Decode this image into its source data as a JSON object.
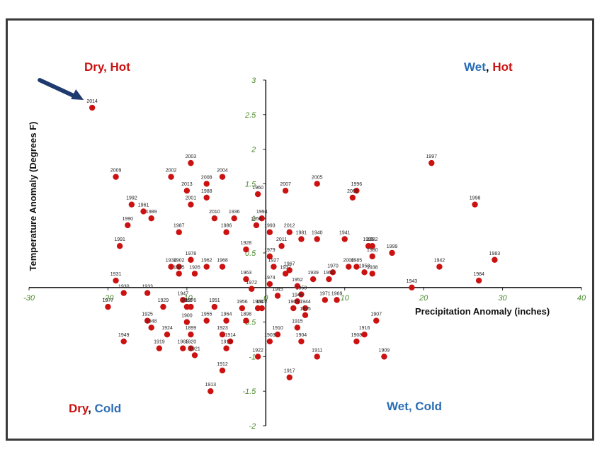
{
  "colors": {
    "red": "#cc1111",
    "blue": "#2a6db5",
    "tick": "#4a8a2a",
    "arrow": "#1f3a6e",
    "point": "#cc1111"
  },
  "quadrants": {
    "top_left": [
      {
        "text": "Dry, Hot",
        "color": "#cc1111"
      }
    ],
    "top_right": [
      {
        "text": "Wet",
        "color": "#2a6db5"
      },
      {
        "text": ", ",
        "color": "#111111"
      },
      {
        "text": "Hot",
        "color": "#cc1111"
      }
    ],
    "bottom_left": [
      {
        "text": "Dry",
        "color": "#cc1111"
      },
      {
        "text": ", ",
        "color": "#111111"
      },
      {
        "text": "Cold",
        "color": "#2a6db5"
      }
    ],
    "bottom_right": [
      {
        "text": "Wet, Cold",
        "color": "#2a6db5"
      }
    ]
  },
  "chart_data": {
    "type": "scatter",
    "xlabel": "Precipitation Anomaly (inches)",
    "ylabel": "Temperature Anomaly (Degrees F)",
    "xlim": [
      -30,
      40
    ],
    "ylim": [
      -2,
      3
    ],
    "xticks": [
      -30,
      -20,
      -10,
      0,
      10,
      20,
      30,
      40
    ],
    "yticks": [
      -2,
      -1.5,
      -1,
      -0.5,
      0,
      0.5,
      1,
      1.5,
      2,
      2.5,
      3
    ],
    "grid": false,
    "annotation": {
      "type": "arrow",
      "target": "2014"
    },
    "points": [
      {
        "label": "2014",
        "x": -22,
        "y": 2.6
      },
      {
        "label": "2009",
        "x": -19,
        "y": 1.6
      },
      {
        "label": "2002",
        "x": -12,
        "y": 1.6
      },
      {
        "label": "2003",
        "x": -9.5,
        "y": 1.8
      },
      {
        "label": "2004",
        "x": -5.5,
        "y": 1.6
      },
      {
        "label": "2008",
        "x": -7.5,
        "y": 1.5
      },
      {
        "label": "2013",
        "x": -10,
        "y": 1.4
      },
      {
        "label": "1988",
        "x": -7.5,
        "y": 1.3
      },
      {
        "label": "1992",
        "x": -17,
        "y": 1.2
      },
      {
        "label": "1961",
        "x": -15.5,
        "y": 1.1
      },
      {
        "label": "1989",
        "x": -14.5,
        "y": 1.0
      },
      {
        "label": "2001",
        "x": -9.5,
        "y": 1.2
      },
      {
        "label": "2010",
        "x": -6.5,
        "y": 1.0
      },
      {
        "label": "1936",
        "x": -4,
        "y": 1.0
      },
      {
        "label": "1990",
        "x": -17.5,
        "y": 0.9
      },
      {
        "label": "1987",
        "x": -11,
        "y": 0.8
      },
      {
        "label": "1986",
        "x": -5,
        "y": 0.8
      },
      {
        "label": "1991",
        "x": -18.5,
        "y": 0.6
      },
      {
        "label": "1960",
        "x": -1,
        "y": 1.35
      },
      {
        "label": "1994",
        "x": -0.5,
        "y": 1.0
      },
      {
        "label": "1954",
        "x": -1.2,
        "y": 0.9
      },
      {
        "label": "1993",
        "x": 0.5,
        "y": 0.8
      },
      {
        "label": "2007",
        "x": 2.5,
        "y": 1.4
      },
      {
        "label": "2005",
        "x": 6.5,
        "y": 1.5
      },
      {
        "label": "1996",
        "x": 11.5,
        "y": 1.4
      },
      {
        "label": "2006",
        "x": 11,
        "y": 1.3
      },
      {
        "label": "2012",
        "x": 3,
        "y": 0.8
      },
      {
        "label": "1981",
        "x": 4.5,
        "y": 0.7
      },
      {
        "label": "1940",
        "x": 6.5,
        "y": 0.7
      },
      {
        "label": "2011",
        "x": 2,
        "y": 0.6
      },
      {
        "label": "1928",
        "x": -2.5,
        "y": 0.55
      },
      {
        "label": "1941",
        "x": 10,
        "y": 0.7
      },
      {
        "label": "1995",
        "x": 13,
        "y": 0.6
      },
      {
        "label": "1982",
        "x": 13.5,
        "y": 0.6
      },
      {
        "label": "1999",
        "x": 16,
        "y": 0.5
      },
      {
        "label": "1980",
        "x": 13.5,
        "y": 0.45
      },
      {
        "label": "2000",
        "x": 10.5,
        "y": 0.3
      },
      {
        "label": "1985",
        "x": 11.5,
        "y": 0.3
      },
      {
        "label": "1958",
        "x": 12.5,
        "y": 0.22
      },
      {
        "label": "1938",
        "x": 13.5,
        "y": 0.2
      },
      {
        "label": "1970",
        "x": 8.5,
        "y": 0.22
      },
      {
        "label": "1950",
        "x": 8,
        "y": 0.12
      },
      {
        "label": "1979",
        "x": 0.5,
        "y": 0.45
      },
      {
        "label": "1927",
        "x": 1,
        "y": 0.3
      },
      {
        "label": "1967",
        "x": 3,
        "y": 0.25
      },
      {
        "label": "1937",
        "x": 2.5,
        "y": 0.2
      },
      {
        "label": "1939",
        "x": 6,
        "y": 0.12
      },
      {
        "label": "1974",
        "x": 0.5,
        "y": 0.05
      },
      {
        "label": "1952",
        "x": 4,
        "y": 0.02
      },
      {
        "label": "1963",
        "x": -2.5,
        "y": 0.12
      },
      {
        "label": "1972",
        "x": -1.8,
        "y": -0.02
      },
      {
        "label": "1997",
        "x": 21,
        "y": 1.8
      },
      {
        "label": "1998",
        "x": 26.5,
        "y": 1.2
      },
      {
        "label": "1942",
        "x": 22,
        "y": 0.3
      },
      {
        "label": "1983",
        "x": 29,
        "y": 0.4
      },
      {
        "label": "1984",
        "x": 27,
        "y": 0.1
      },
      {
        "label": "1943",
        "x": 18.5,
        "y": 0.0
      },
      {
        "label": "1931",
        "x": -19,
        "y": 0.1
      },
      {
        "label": "1934",
        "x": -12,
        "y": 0.3
      },
      {
        "label": "1902",
        "x": -11,
        "y": 0.3
      },
      {
        "label": "1978",
        "x": -9.5,
        "y": 0.4
      },
      {
        "label": "1962",
        "x": -7.5,
        "y": 0.3
      },
      {
        "label": "1968",
        "x": -5.5,
        "y": 0.3
      },
      {
        "label": "1935",
        "x": -11,
        "y": 0.2
      },
      {
        "label": "1926",
        "x": -9,
        "y": 0.2
      },
      {
        "label": "1930",
        "x": -18,
        "y": -0.08
      },
      {
        "label": "1933",
        "x": -15,
        "y": -0.08
      },
      {
        "label": "1977",
        "x": -20,
        "y": -0.28
      },
      {
        "label": "1929",
        "x": -13,
        "y": -0.28
      },
      {
        "label": "1947",
        "x": -10.5,
        "y": -0.18
      },
      {
        "label": "1966",
        "x": -10,
        "y": -0.28
      },
      {
        "label": "1976",
        "x": -9.5,
        "y": -0.28
      },
      {
        "label": "1951",
        "x": -6.5,
        "y": -0.28
      },
      {
        "label": "1925",
        "x": -15,
        "y": -0.48
      },
      {
        "label": "1948",
        "x": -14.5,
        "y": -0.58
      },
      {
        "label": "1900",
        "x": -10,
        "y": -0.5
      },
      {
        "label": "1955",
        "x": -7.5,
        "y": -0.48
      },
      {
        "label": "1964",
        "x": -5,
        "y": -0.48
      },
      {
        "label": "1956",
        "x": -3,
        "y": -0.3
      },
      {
        "label": "1898",
        "x": -2.5,
        "y": -0.48
      },
      {
        "label": "1924",
        "x": -12.5,
        "y": -0.68
      },
      {
        "label": "1899",
        "x": -9.5,
        "y": -0.68
      },
      {
        "label": "1920",
        "x": -9.5,
        "y": -0.88
      },
      {
        "label": "1923",
        "x": -5.5,
        "y": -0.68
      },
      {
        "label": "1914",
        "x": -4.5,
        "y": -0.78
      },
      {
        "label": "1949",
        "x": -18,
        "y": -0.78
      },
      {
        "label": "1919",
        "x": -13.5,
        "y": -0.88
      },
      {
        "label": "1965",
        "x": -10.5,
        "y": -0.88
      },
      {
        "label": "1921",
        "x": -9,
        "y": -0.98
      },
      {
        "label": "1918",
        "x": -5,
        "y": -0.88
      },
      {
        "label": "1912",
        "x": -5.5,
        "y": -1.2
      },
      {
        "label": "1913",
        "x": -7,
        "y": -1.5
      },
      {
        "label": "1945",
        "x": 1.5,
        "y": -0.12
      },
      {
        "label": "1901",
        "x": -1,
        "y": -0.3
      },
      {
        "label": "1902b",
        "x": -0.5,
        "y": -0.3
      },
      {
        "label": "1922",
        "x": -1,
        "y": -1.0
      },
      {
        "label": "1910",
        "x": 1.5,
        "y": -0.68
      },
      {
        "label": "1903",
        "x": 0.5,
        "y": -0.78
      },
      {
        "label": "1917",
        "x": 3,
        "y": -1.3
      },
      {
        "label": "1953",
        "x": 4.5,
        "y": -0.1
      },
      {
        "label": "1946",
        "x": 4,
        "y": -0.2
      },
      {
        "label": "1905",
        "x": 3.5,
        "y": -0.3
      },
      {
        "label": "1944",
        "x": 5,
        "y": -0.3
      },
      {
        "label": "1975",
        "x": 5,
        "y": -0.4
      },
      {
        "label": "1915",
        "x": 4,
        "y": -0.58
      },
      {
        "label": "1904",
        "x": 4.5,
        "y": -0.78
      },
      {
        "label": "1911",
        "x": 6.5,
        "y": -1.0
      },
      {
        "label": "1971",
        "x": 7.5,
        "y": -0.18
      },
      {
        "label": "1969",
        "x": 9,
        "y": -0.18
      },
      {
        "label": "1907",
        "x": 14,
        "y": -0.48
      },
      {
        "label": "1916",
        "x": 12.5,
        "y": -0.68
      },
      {
        "label": "1908",
        "x": 11.5,
        "y": -0.78
      },
      {
        "label": "1909",
        "x": 15,
        "y": -1.0
      }
    ]
  }
}
